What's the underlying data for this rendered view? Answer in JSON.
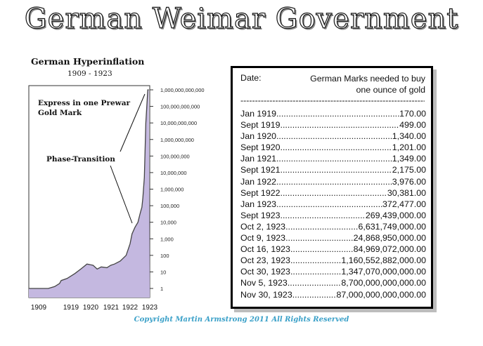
{
  "header": {
    "title": "German Weimar Government"
  },
  "chart_data": {
    "type": "area",
    "title": "German Hyperinflation",
    "subtitle": "1909 - 1923",
    "x_tick_labels": [
      "1909",
      "1919",
      "1920",
      "1921",
      "1922",
      "1923"
    ],
    "y_scale": "log",
    "y_tick_labels": [
      "1",
      "10",
      "100",
      "1,000",
      "10,000",
      "100,000",
      "1,000,000",
      "10,000,000",
      "100,000,000",
      "1,000,000,000",
      "10,000,000,000",
      "100,000,000,000",
      "1,000,000,000,000"
    ],
    "x": [
      1909,
      1915,
      1917,
      1918.5,
      1919,
      1919.3,
      1919.7,
      1920,
      1920.3,
      1920.6,
      1920.8,
      1921,
      1921.3,
      1921.5,
      1921.7,
      1922,
      1922.3,
      1922.5,
      1922.6,
      1922.75,
      1922.9,
      1923,
      1923.1,
      1923.2,
      1923.3,
      1923.45,
      1923.6,
      1923.7,
      1923.8,
      1923.9
    ],
    "y": [
      1,
      1,
      1.3,
      2,
      3,
      4,
      8,
      15,
      30,
      25,
      15,
      20,
      18,
      25,
      30,
      45,
      100,
      500,
      2000,
      5000,
      10000,
      30000,
      50000,
      80000,
      300000,
      5000000,
      10000000000,
      100000000000,
      1000000000000,
      1000000000000
    ],
    "annotations": [
      "Express in one Prewar Gold Mark",
      "Phase-Transition"
    ],
    "fill_color": "#c4b8e0",
    "line_color": "#444444"
  },
  "price_table": {
    "header_date": "Date:",
    "header_value": "German Marks needed to buy one ounce of gold",
    "separator": "------------------------------------------------------------------------",
    "rows": [
      {
        "date": "Jan 1919",
        "value": "170.00"
      },
      {
        "date": "Sept 1919",
        "value": "499.00"
      },
      {
        "date": "Jan 1920",
        "value": "1,340.00"
      },
      {
        "date": "Sept 1920",
        "value": "1,201.00"
      },
      {
        "date": "Jan 1921",
        "value": "1,349.00"
      },
      {
        "date": "Sept 1921",
        "value": "2,175.00"
      },
      {
        "date": "Jan 1922",
        "value": "3,976.00"
      },
      {
        "date": "Sept 1922",
        "value": "30,381.00"
      },
      {
        "date": "Jan 1923",
        "value": "372,477.00"
      },
      {
        "date": "Sept 1923",
        "value": "269,439,000.00"
      },
      {
        "date": "Oct 2, 1923",
        "value": "6,631,749,000.00"
      },
      {
        "date": "Oct 9, 1923",
        "value": "24,868,950,000.00"
      },
      {
        "date": "Oct 16, 1923",
        "value": "84,969,072,000.00"
      },
      {
        "date": "Oct 23, 1923",
        "value": "1,160,552,882,000.00"
      },
      {
        "date": "Oct 30, 1923",
        "value": "1,347,070,000,000.00"
      },
      {
        "date": "Nov 5, 1923",
        "value": "8,700,000,000,000.00"
      },
      {
        "date": "Nov 30, 1923",
        "value": "87,000,000,000,000.00"
      }
    ]
  },
  "footer": {
    "copyright": "Copyright Martin Armstrong 2011 All Rights Reserved"
  }
}
